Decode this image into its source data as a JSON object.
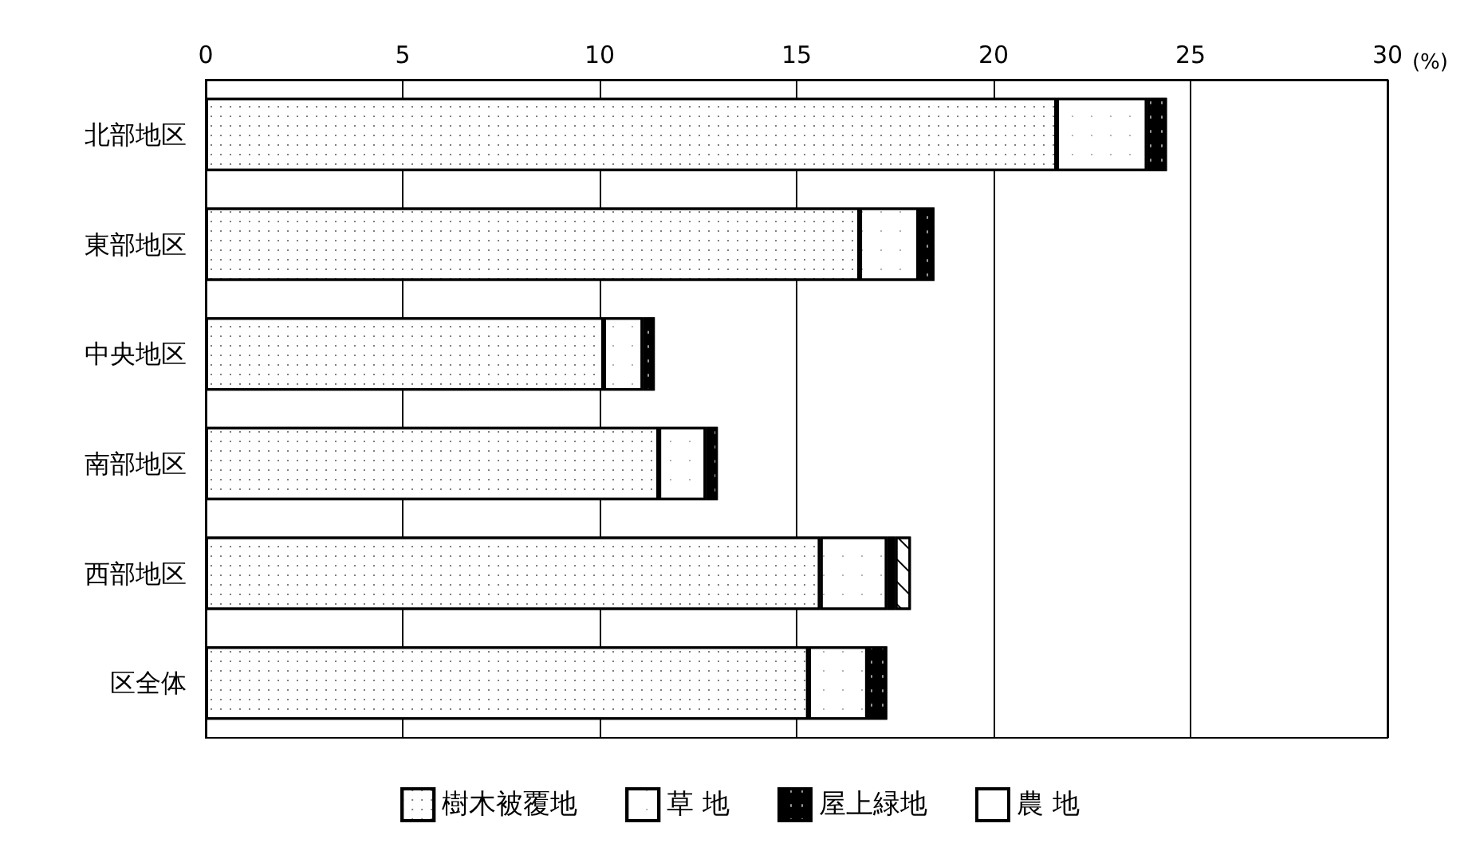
{
  "chart_data": {
    "type": "bar",
    "orientation": "horizontal",
    "stacked": true,
    "categories": [
      "北部地区",
      "東部地区",
      "中央地区",
      "南部地区",
      "西部地区",
      "区全体"
    ],
    "series": [
      {
        "name": "樹木被覆地",
        "color": "#ffffff",
        "values": [
          21.6,
          16.6,
          10.1,
          11.5,
          15.6,
          15.3
        ]
      },
      {
        "name": "草 地",
        "color": "#ffffff",
        "values": [
          2.3,
          1.5,
          1.0,
          1.2,
          1.7,
          1.5
        ]
      },
      {
        "name": "屋上緑地",
        "color": "#000000",
        "values": [
          0.5,
          0.4,
          0.3,
          0.3,
          0.2,
          0.5
        ]
      },
      {
        "name": "農 地",
        "color": "#ffffff",
        "values": [
          null,
          null,
          null,
          null,
          0.4,
          null
        ]
      }
    ],
    "xlabel": "(%)",
    "xlim": [
      0,
      30
    ],
    "xticks": [
      0,
      5,
      10,
      15,
      20,
      25,
      30
    ],
    "grid": "x",
    "legend": "bottom"
  }
}
